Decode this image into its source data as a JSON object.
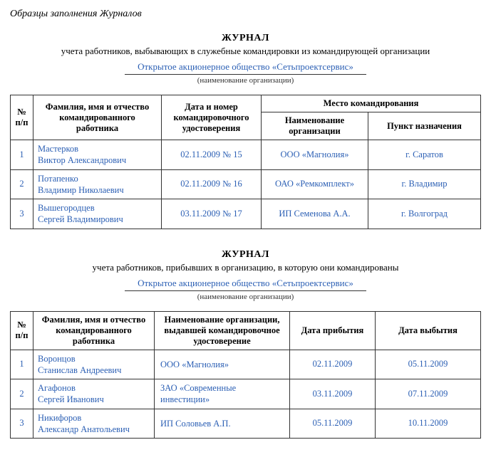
{
  "colors": {
    "text": "#000000",
    "link": "#2b5fb4",
    "border": "#333333",
    "background": "#ffffff"
  },
  "page_subtitle": "Образцы заполнения Журналов",
  "journal1": {
    "title": "ЖУРНАЛ",
    "desc": "учета работников, выбывающих в служебные командировки из командирующей организации",
    "org_name": "Открытое акционерное общество «Сетьпроектсервис»",
    "org_label": "(наименование организации)",
    "headers": {
      "num": "№ п/п",
      "fio": "Фамилия, имя и отчество командированного работника",
      "doc": "Дата и номер командировочного удостоверения",
      "place_group": "Место командирования",
      "org": "Наименование организации",
      "dest": "Пункт назначения"
    },
    "rows": [
      {
        "num": "1",
        "fio_line1": "Мастерков",
        "fio_line2": "Виктор Александрович",
        "doc": "02.11.2009 № 15",
        "org": "ООО «Магнолия»",
        "dest": "г. Саратов"
      },
      {
        "num": "2",
        "fio_line1": "Потапенко",
        "fio_line2": "Владимир Николаевич",
        "doc": "02.11.2009 № 16",
        "org": "ОАО «Ремкомплект»",
        "dest": "г. Владимир"
      },
      {
        "num": "3",
        "fio_line1": "Вышегородцев",
        "fio_line2": "Сергей Владимирович",
        "doc": "03.11.2009 № 17",
        "org": "ИП Семенова А.А.",
        "dest": "г. Волгоград"
      }
    ]
  },
  "journal2": {
    "title": "ЖУРНАЛ",
    "desc": "учета работников, прибывших в организацию, в которую они командированы",
    "org_name": "Открытое акционерное общество «Сетьпроектсервис»",
    "org_label": "(наименование организации)",
    "headers": {
      "num": "№ п/п",
      "fio": "Фамилия, имя и отчество командированного работника",
      "org": "Наименование организации, выдавшей командировочное удостоверение",
      "arrive": "Дата прибытия",
      "depart": "Дата выбытия"
    },
    "rows": [
      {
        "num": "1",
        "fio_line1": "Воронцов",
        "fio_line2": "Станислав Андреевич",
        "org_line1": "ООО «Магнолия»",
        "org_line2": "",
        "arrive": "02.11.2009",
        "depart": "05.11.2009"
      },
      {
        "num": "2",
        "fio_line1": "Агафонов",
        "fio_line2": "Сергей Иванович",
        "org_line1": "ЗАО «Современные",
        "org_line2": "инвестиции»",
        "arrive": "03.11.2009",
        "depart": "07.11.2009"
      },
      {
        "num": "3",
        "fio_line1": "Никифоров",
        "fio_line2": "Александр Анатольевич",
        "org_line1": "ИП Соловьев А.П.",
        "org_line2": "",
        "arrive": "05.11.2009",
        "depart": "10.11.2009"
      }
    ]
  }
}
